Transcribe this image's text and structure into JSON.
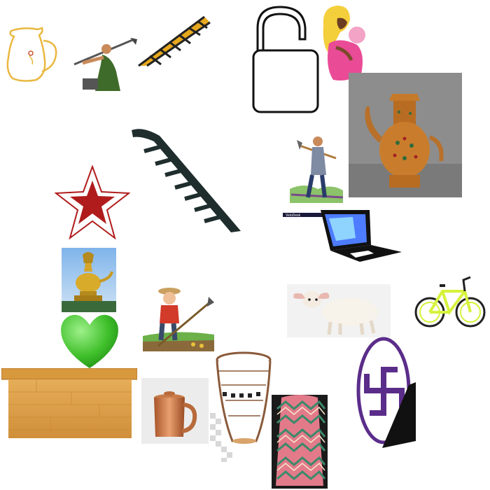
{
  "items": [
    {
      "name": "jug-icon"
    },
    {
      "name": "farmer-hoeing-icon"
    },
    {
      "name": "railway-track-icon"
    },
    {
      "name": "open-padlock-icon"
    },
    {
      "name": "mother-and-baby-icon"
    },
    {
      "name": "ornate-teapot-photo"
    },
    {
      "name": "ladder-track-icon"
    },
    {
      "name": "man-with-hoe-icon"
    },
    {
      "name": "red-star-icon"
    },
    {
      "name": "laptop-icon"
    },
    {
      "name": "brass-lamp-photo"
    },
    {
      "name": "bicycle-photo"
    },
    {
      "name": "farmer-with-hoe-cartoon"
    },
    {
      "name": "lamb-photo"
    },
    {
      "name": "green-heart-icon"
    },
    {
      "name": "swastika-symbol-icon"
    },
    {
      "name": "wooden-crate-icon"
    },
    {
      "name": "copper-mug-photo"
    },
    {
      "name": "woven-basket-icon"
    },
    {
      "name": "patterned-fabric-photo"
    }
  ],
  "laptop": {
    "screen_text": "VeloDesk"
  },
  "colors": {
    "jug": "#e9b840",
    "star_red": "#b01c1c",
    "heart_green": "#3fbf2a",
    "crate": "#d99d45",
    "teapot_bg": "#8c8c8c",
    "swastika_purple": "#5b2d8a",
    "bike_yellow": "#d6f23a"
  }
}
